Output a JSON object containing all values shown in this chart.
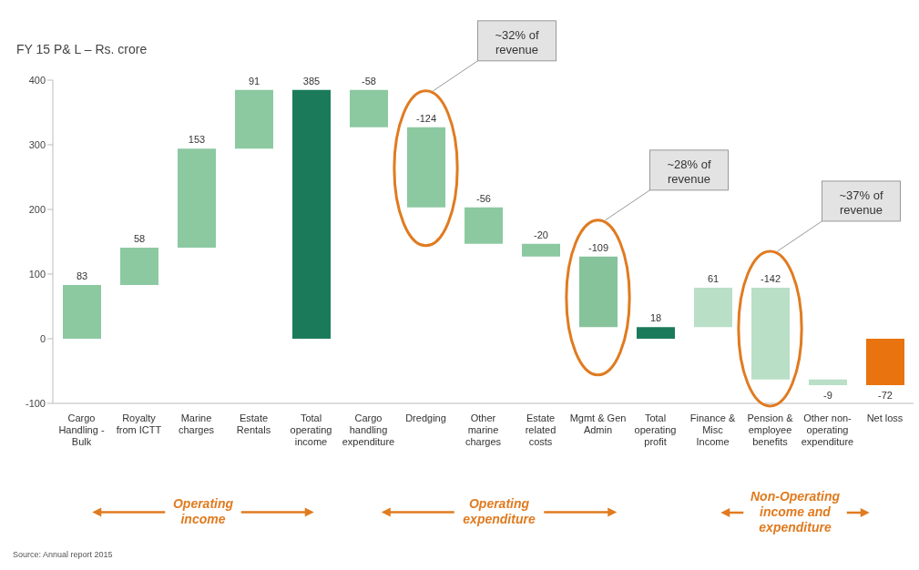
{
  "chart_data": {
    "type": "bar",
    "title": "FY 15 P& L – Rs. crore",
    "categories": [
      "Cargo Handling - Bulk",
      "Royalty from ICTT",
      "Marine charges",
      "Estate Rentals",
      "Total operating income",
      "Cargo handling expenditure",
      "Dredging",
      "Other marine charges",
      "Estate related costs",
      "Mgmt & Gen Admin",
      "Total operating profit",
      "Finance & Misc Income",
      "Pension & employee benefits",
      "Other non-operating expenditure",
      "Net loss"
    ],
    "values": [
      83,
      58,
      153,
      91,
      385,
      -58,
      -124,
      -56,
      -20,
      -109,
      18,
      61,
      -142,
      -9,
      -72
    ],
    "base": [
      0,
      83,
      141,
      294,
      0,
      385,
      327,
      203,
      147,
      127,
      0,
      18,
      79,
      -63,
      0
    ],
    "colors": [
      "#8cc9a1",
      "#8cc9a1",
      "#8cc9a1",
      "#8cc9a1",
      "#1b7a5a",
      "#8cc9a1",
      "#8cc9a1",
      "#8cc9a1",
      "#8cc9a1",
      "#86c39b",
      "#1b7a5a",
      "#b9dfc7",
      "#b9dfc7",
      "#b9dfc7",
      "#e8730f"
    ],
    "ylim": [
      -100,
      400
    ],
    "yticks": [
      -100,
      0,
      100,
      200,
      300,
      400
    ],
    "data_labels": true,
    "grid": false,
    "legend": false,
    "annotations": [
      "~32% of revenue",
      "~28% of revenue",
      "~37% of revenue",
      "Operating income",
      "Operating expenditure",
      "Non-Operating income and expenditure",
      "Source: Annual report 2015"
    ]
  }
}
